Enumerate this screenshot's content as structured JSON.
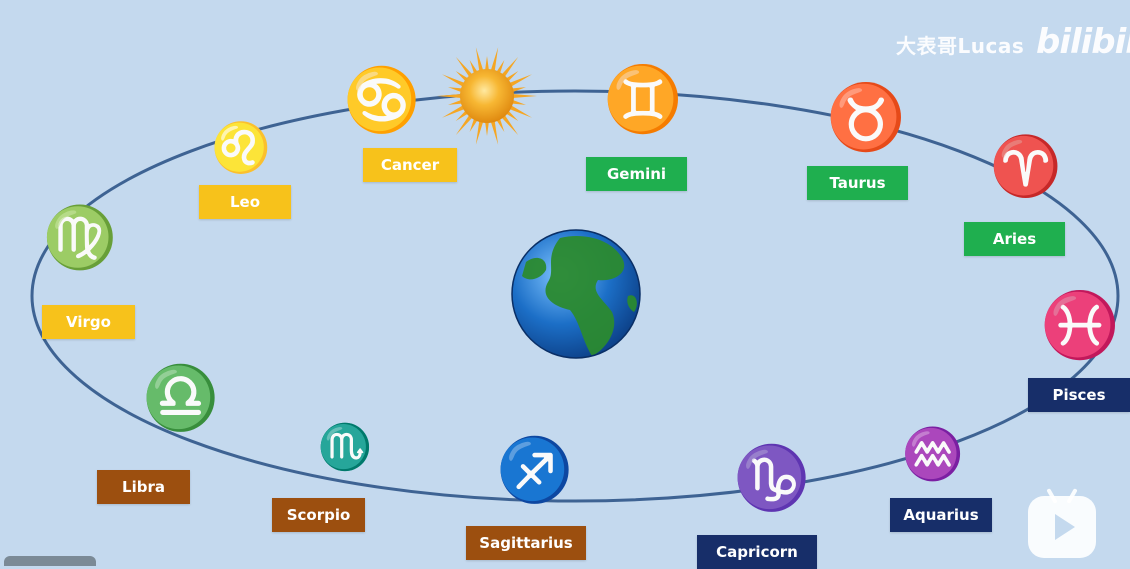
{
  "colors": {
    "background": "#c4d9ee",
    "orbit": "#3e6393",
    "yellow": "#f7c21b",
    "green": "#1faf4f",
    "brown": "#9c4f0f",
    "navy": "#172e69",
    "sun": "#f5a623",
    "ocean": "#1c6fc7",
    "land": "#2b8a2f"
  },
  "watermark": {
    "text": "大表哥Lucas",
    "brand": "bilibili"
  },
  "signs": [
    {
      "name": "Cancer",
      "symbol": "♋",
      "color": "yellow"
    },
    {
      "name": "Leo",
      "symbol": "♌",
      "color": "yellow"
    },
    {
      "name": "Virgo",
      "symbol": "♍",
      "color": "yellow"
    },
    {
      "name": "Gemini",
      "symbol": "♊",
      "color": "green"
    },
    {
      "name": "Taurus",
      "symbol": "♉",
      "color": "green"
    },
    {
      "name": "Aries",
      "symbol": "♈",
      "color": "green"
    },
    {
      "name": "Libra",
      "symbol": "♎",
      "color": "brown"
    },
    {
      "name": "Scorpio",
      "symbol": "♏",
      "color": "brown"
    },
    {
      "name": "Sagittarius",
      "symbol": "♐",
      "color": "brown"
    },
    {
      "name": "Pisces",
      "symbol": "♓",
      "color": "navy"
    },
    {
      "name": "Aquarius",
      "symbol": "♒",
      "color": "navy"
    },
    {
      "name": "Capricorn",
      "symbol": "♑",
      "color": "navy"
    }
  ],
  "icons": {
    "sun": "sun-icon",
    "earth": "earth-icon",
    "play": "play-icon"
  }
}
